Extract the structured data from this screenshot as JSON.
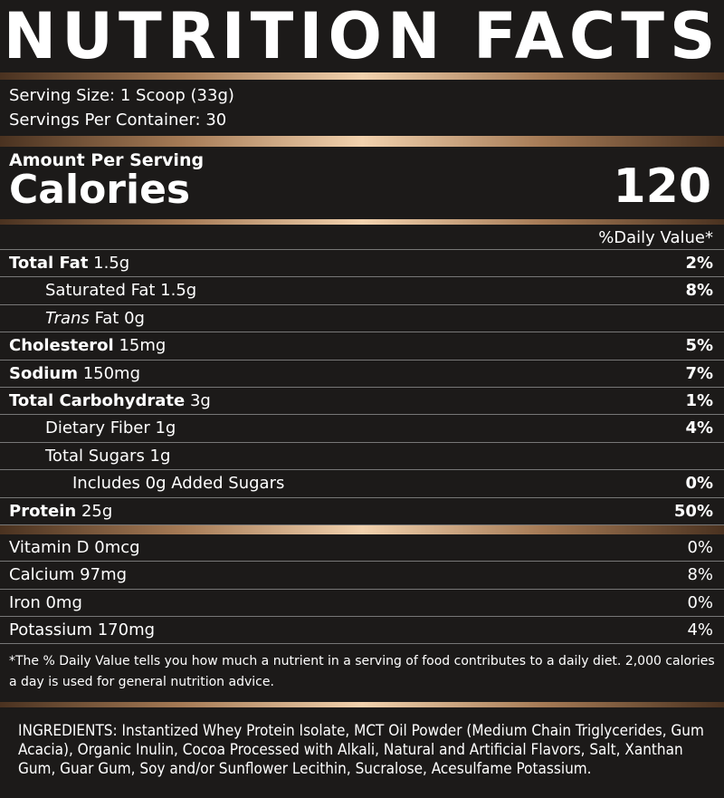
{
  "header": {
    "title": "NUTRITION FACTS"
  },
  "serving": {
    "size": "Serving Size: 1 Scoop (33g)",
    "per_container": "Servings Per Container: 30"
  },
  "calories": {
    "label_small": "Amount Per Serving",
    "label": "Calories",
    "value": "120"
  },
  "daily_value_header": "%Daily Value*",
  "nutrients": [
    {
      "name": "Total Fat",
      "amount": "1.5g",
      "dv": "2%"
    },
    {
      "name": "Saturated Fat 1.5g",
      "dv": "8%"
    },
    {
      "name": "Trans",
      "amount": "Fat 0g"
    },
    {
      "name": "Cholesterol",
      "amount": "15mg",
      "dv": "5%"
    },
    {
      "name": "Sodium",
      "amount": "150mg",
      "dv": "7%"
    },
    {
      "name": "Total Carbohydrate",
      "amount": "3g",
      "dv": "1%"
    },
    {
      "name": "Dietary Fiber 1g",
      "dv": "4%"
    },
    {
      "name": "Total Sugars 1g"
    },
    {
      "name": "Includes 0g Added Sugars",
      "dv": "0%"
    },
    {
      "name": "Protein",
      "amount": "25g",
      "dv": "50%"
    }
  ],
  "vitamins": [
    {
      "name": "Vitamin D 0mcg",
      "dv": "0%"
    },
    {
      "name": "Calcium 97mg",
      "dv": "8%"
    },
    {
      "name": "Iron 0mg",
      "dv": "0%"
    },
    {
      "name": "Potassium 170mg",
      "dv": "4%"
    }
  ],
  "footnote": "*The % Daily Value tells you how much a nutrient in a serving of food contributes to a daily diet. 2,000 calories a day is used for general nutrition advice.",
  "ingredients": {
    "label": "INGREDIENTS:",
    "text": "Instantized Whey Protein Isolate, MCT Oil Powder (Medium Chain Triglycerides, Gum Acacia), Organic Inulin, Cocoa Processed with Alkali, Natural and Artificial Flavors, Salt, Xanthan Gum, Guar Gum, Soy and/or Sunflower Lecithin, Sucralose, Acesulfame Potassium."
  }
}
